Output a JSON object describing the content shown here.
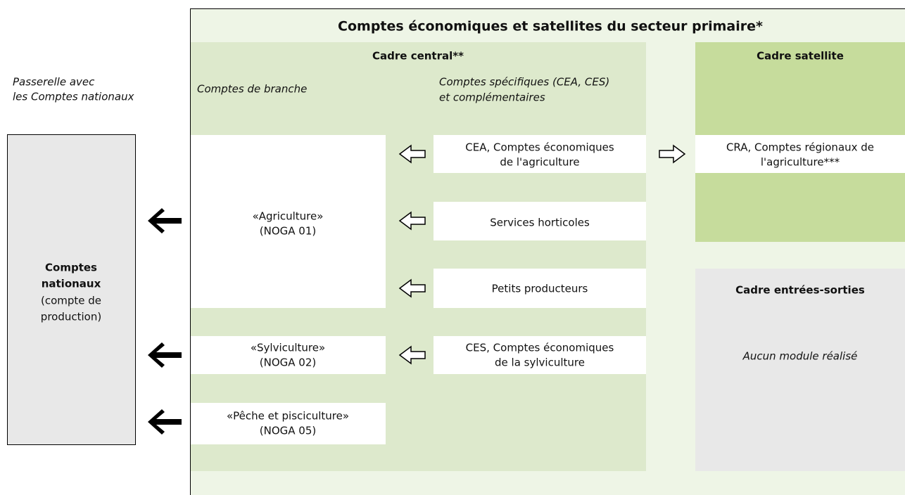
{
  "header": {
    "title": "Comptes économiques et satellites du secteur primaire*"
  },
  "gateway": {
    "lines": [
      "Passerelle avec",
      "les Comptes nationaux"
    ]
  },
  "national": {
    "bold_lines": [
      "Comptes",
      "nationaux"
    ],
    "lines": [
      "(compte de",
      "production)"
    ]
  },
  "central": {
    "title": "Cadre central**",
    "branch_heading": "Comptes de branche",
    "specific_heading": [
      "Comptes spécifiques (CEA, CES)",
      "et complémentaires"
    ],
    "branches": [
      {
        "lines": [
          "«Agriculture»",
          "(NOGA 01)"
        ]
      },
      {
        "lines": [
          "«Sylviculture»",
          "(NOGA 02)"
        ]
      },
      {
        "lines": [
          "«Pêche et pisciculture»",
          "(NOGA 05)"
        ]
      }
    ],
    "specific": [
      {
        "lines": [
          "CEA, Comptes économiques",
          "de l'agriculture"
        ]
      },
      {
        "lines": [
          "Services horticoles"
        ]
      },
      {
        "lines": [
          "Petits producteurs"
        ]
      },
      {
        "lines": [
          "CES, Comptes économiques",
          "de la sylviculture"
        ]
      }
    ]
  },
  "satellite": {
    "title": "Cadre satellite",
    "box": {
      "lines": [
        "CRA, Comptes régionaux de",
        "l'agriculture***"
      ]
    }
  },
  "input_output": {
    "title": "Cadre entrées-sorties",
    "note": "Aucun module réalisé"
  }
}
